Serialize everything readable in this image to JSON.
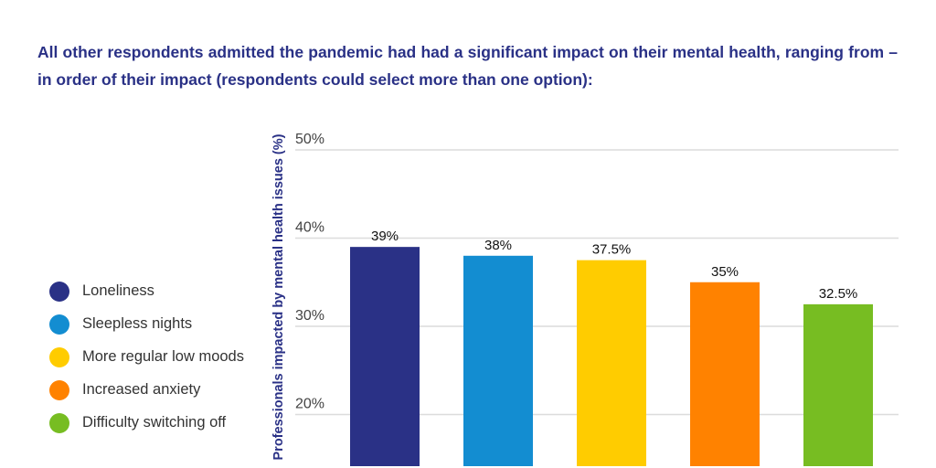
{
  "intro": "All other respondents admitted the pandemic had had a significant impact on their mental health, ranging from – in order of their impact (respondents could select more than one option):",
  "legend": [
    {
      "label": "Loneliness",
      "color": "#2a3186"
    },
    {
      "label": "Sleepless nights",
      "color": "#138dd1"
    },
    {
      "label": "More regular low moods",
      "color": "#ffcc00"
    },
    {
      "label": "Increased anxiety",
      "color": "#ff8200"
    },
    {
      "label": "Difficulty switching off",
      "color": "#77bd22"
    }
  ],
  "chart_data": {
    "type": "bar",
    "categories": [
      "Loneliness",
      "Sleepless nights",
      "More regular low moods",
      "Increased anxiety",
      "Difficulty switching off"
    ],
    "values": [
      39,
      38,
      37.5,
      35,
      32.5
    ],
    "data_labels": [
      "39%",
      "38%",
      "37.5%",
      "35%",
      "32.5%"
    ],
    "colors": [
      "#2a3186",
      "#138dd1",
      "#ffcc00",
      "#ff8200",
      "#77bd22"
    ],
    "ylabel": "Professionals impacted by mental health issues (%)",
    "yticks": [
      20,
      30,
      40,
      50
    ],
    "ytick_labels": [
      "20%",
      "30%",
      "40%",
      "50%"
    ],
    "grid": true,
    "legend_position": "left"
  }
}
